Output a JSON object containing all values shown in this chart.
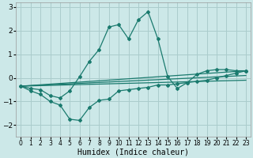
{
  "xlabel": "Humidex (Indice chaleur)",
  "bg_color": "#cce8e8",
  "grid_color": "#aacccc",
  "line_color": "#1a7a6e",
  "x": [
    0,
    1,
    2,
    3,
    4,
    5,
    6,
    7,
    8,
    9,
    10,
    11,
    12,
    13,
    14,
    15,
    16,
    17,
    18,
    19,
    20,
    21,
    22,
    23
  ],
  "y_up": [
    -0.35,
    -0.45,
    -0.5,
    -0.75,
    -0.85,
    -0.55,
    0.05,
    0.7,
    1.2,
    2.15,
    2.25,
    1.65,
    2.45,
    2.8,
    1.65,
    0.05,
    -0.45,
    -0.2,
    0.15,
    0.3,
    0.35,
    0.35,
    0.3,
    0.3
  ],
  "y_down": [
    -0.35,
    -0.55,
    -0.7,
    -1.0,
    -1.15,
    -1.75,
    -1.8,
    -1.25,
    -0.95,
    -0.9,
    -0.55,
    -0.5,
    -0.45,
    -0.4,
    -0.3,
    -0.3,
    -0.25,
    -0.2,
    -0.15,
    -0.1,
    0.0,
    0.1,
    0.2,
    0.3
  ],
  "y_line1_start": -0.35,
  "y_line1_end": 0.3,
  "y_line2_start": -0.35,
  "y_line2_end": 0.1,
  "y_line3_start": -0.35,
  "y_line3_end": -0.1,
  "xlim": [
    -0.5,
    23.5
  ],
  "ylim": [
    -2.5,
    3.2
  ],
  "yticks": [
    -2,
    -1,
    0,
    1,
    2,
    3
  ],
  "xticks": [
    0,
    1,
    2,
    3,
    4,
    5,
    6,
    7,
    8,
    9,
    10,
    11,
    12,
    13,
    14,
    15,
    16,
    17,
    18,
    19,
    20,
    21,
    22,
    23
  ]
}
